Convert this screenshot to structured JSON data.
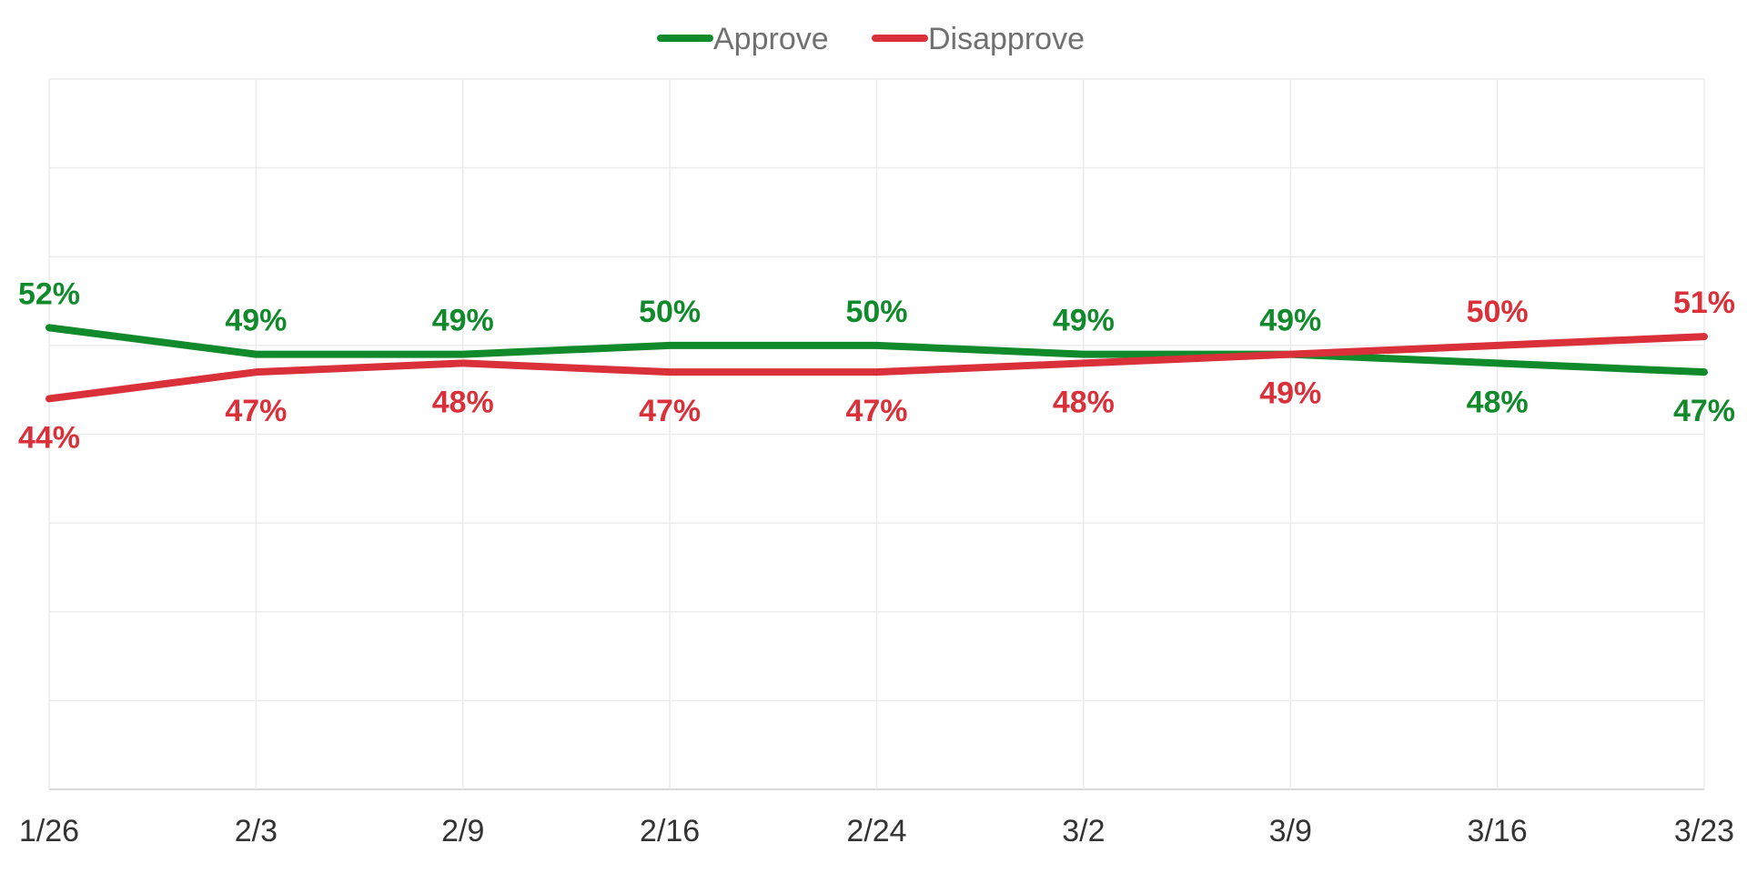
{
  "chart_data": {
    "type": "line",
    "title": "",
    "xlabel": "",
    "ylabel": "",
    "x": [
      "1/26",
      "2/3",
      "2/9",
      "2/16",
      "2/24",
      "3/2",
      "3/9",
      "3/16",
      "3/23"
    ],
    "ylim": [
      0,
      80
    ],
    "grid": true,
    "legend_position": "top-center",
    "series": [
      {
        "name": "Approve",
        "color": "#118a2b",
        "values": [
          52,
          49,
          49,
          50,
          50,
          49,
          49,
          48,
          47
        ],
        "labels": [
          "52%",
          "49%",
          "49%",
          "50%",
          "50%",
          "49%",
          "49%",
          "48%",
          "47%"
        ]
      },
      {
        "name": "Disapprove",
        "color": "#d9303a",
        "values": [
          44,
          47,
          48,
          47,
          47,
          48,
          49,
          50,
          51
        ],
        "labels": [
          "44%",
          "47%",
          "48%",
          "47%",
          "47%",
          "48%",
          "49%",
          "50%",
          "51%"
        ]
      }
    ]
  }
}
